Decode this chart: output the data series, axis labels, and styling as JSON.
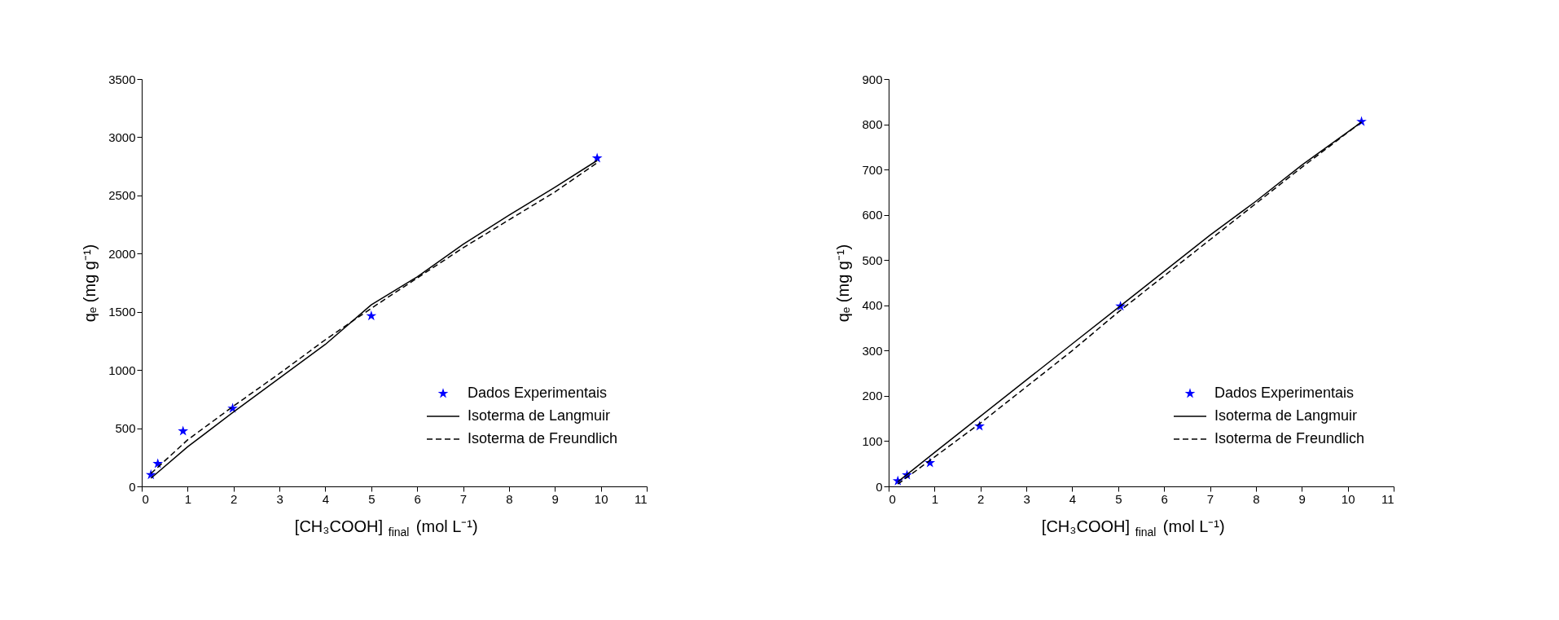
{
  "chart_data": [
    {
      "type": "scatter",
      "xlabel": "[CH₃COOH]$_{final}$ (mol L⁻¹)",
      "ylabel": "qₑ (mg g⁻¹)",
      "xlim": [
        0,
        11
      ],
      "ylim": [
        0,
        3500
      ],
      "xticks": [
        0,
        1,
        2,
        3,
        4,
        5,
        6,
        7,
        8,
        9,
        10,
        11
      ],
      "yticks": [
        0,
        500,
        1000,
        1500,
        2000,
        2500,
        3000,
        3500
      ],
      "grid": false,
      "legend": "bottom right",
      "series": [
        {
          "name": "Dados Experimentais",
          "type": "scatter",
          "marker": "star",
          "color": "#0000ff",
          "x": [
            0.2,
            0.35,
            0.9,
            1.98,
            5.0,
            9.92
          ],
          "values": [
            100,
            195,
            475,
            670,
            1465,
            2820
          ]
        },
        {
          "name": "Isoterma de Langmuir",
          "type": "line",
          "line_style": "solid",
          "color": "#000000",
          "x": [
            0.2,
            1,
            2,
            3,
            4,
            5,
            6,
            7,
            8,
            9,
            9.92
          ],
          "values": [
            70,
            340,
            640,
            930,
            1220,
            1560,
            1800,
            2080,
            2330,
            2570,
            2800
          ]
        },
        {
          "name": "Isoterma de Freundlich",
          "type": "line",
          "line_style": "dashed",
          "color": "#000000",
          "x": [
            0.2,
            1,
            2,
            3,
            4,
            5,
            6,
            7,
            8,
            9,
            9.92
          ],
          "values": [
            110,
            400,
            690,
            970,
            1260,
            1530,
            1790,
            2050,
            2290,
            2530,
            2780
          ]
        }
      ]
    },
    {
      "type": "scatter",
      "xlabel": "[CH₃COOH]$_{final}$ (mol L⁻¹)",
      "ylabel": "qₑ (mg g⁻¹)",
      "xlim": [
        0,
        11
      ],
      "ylim": [
        0,
        900
      ],
      "xticks": [
        0,
        1,
        2,
        3,
        4,
        5,
        6,
        7,
        8,
        9,
        10,
        11
      ],
      "yticks": [
        0,
        100,
        200,
        300,
        400,
        500,
        600,
        700,
        800,
        900
      ],
      "grid": false,
      "legend": "bottom right",
      "series": [
        {
          "name": "Dados Experimentais",
          "type": "scatter",
          "marker": "star",
          "color": "#0000ff",
          "x": [
            0.2,
            0.4,
            0.9,
            1.98,
            5.05,
            10.3
          ],
          "values": [
            12,
            25,
            52,
            133,
            398,
            806
          ]
        },
        {
          "name": "Isoterma de Langmuir",
          "type": "line",
          "line_style": "solid",
          "color": "#000000",
          "x": [
            0.2,
            1,
            2,
            3,
            4,
            5,
            6,
            7,
            8,
            9,
            10.3
          ],
          "values": [
            10,
            75,
            155,
            235,
            315,
            395,
            475,
            555,
            630,
            710,
            805
          ]
        },
        {
          "name": "Isoterma de Freundlich",
          "type": "line",
          "line_style": "dashed",
          "color": "#000000",
          "x": [
            0.2,
            1,
            2,
            3,
            4,
            5,
            6,
            7,
            8,
            9,
            10.3
          ],
          "values": [
            5,
            65,
            140,
            220,
            300,
            385,
            465,
            545,
            625,
            705,
            805
          ]
        }
      ]
    }
  ]
}
